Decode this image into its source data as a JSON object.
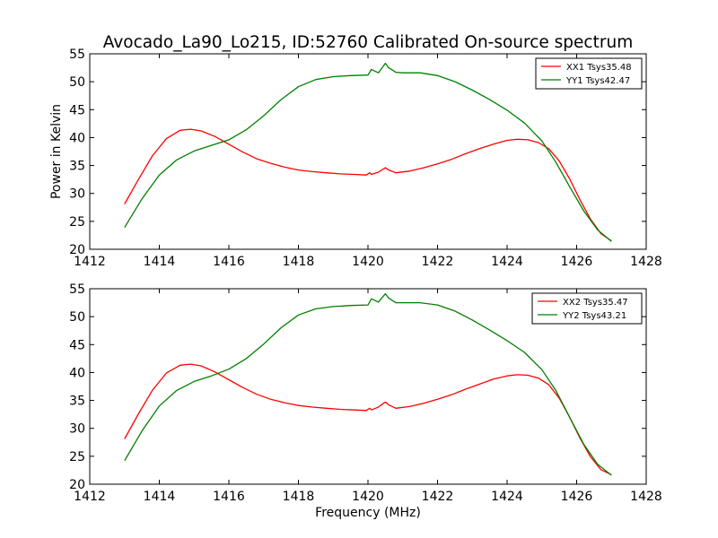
{
  "figure": {
    "title": "Avocado_La90_Lo215, ID:52760 Calibrated On-source spectrum"
  },
  "chart_data": [
    {
      "type": "line",
      "title": "Avocado_La90_Lo215, ID:52760 Calibrated On-source spectrum",
      "xlabel": "",
      "ylabel": "Power in Kelvin",
      "xlim": [
        1412,
        1428
      ],
      "ylim": [
        20,
        55
      ],
      "xticks": [
        1412,
        1414,
        1416,
        1418,
        1420,
        1422,
        1424,
        1426,
        1428
      ],
      "yticks": [
        20,
        25,
        30,
        35,
        40,
        45,
        50,
        55
      ],
      "legend_position": "top-right",
      "grid": false,
      "series": [
        {
          "name": "XX1 Tsys35.48",
          "color": "#ff0000",
          "x": [
            1413.0,
            1413.4,
            1413.8,
            1414.2,
            1414.6,
            1414.9,
            1415.2,
            1415.6,
            1416.0,
            1416.4,
            1416.8,
            1417.2,
            1417.6,
            1418.0,
            1418.4,
            1418.8,
            1419.2,
            1419.6,
            1419.95,
            1420.05,
            1420.1,
            1420.3,
            1420.45,
            1420.5,
            1420.6,
            1420.8,
            1421.2,
            1421.6,
            1422.0,
            1422.4,
            1422.8,
            1423.2,
            1423.6,
            1424.0,
            1424.3,
            1424.6,
            1424.9,
            1425.2,
            1425.5,
            1425.8,
            1426.1,
            1426.4,
            1426.7,
            1427.0
          ],
          "values": [
            28.1,
            32.5,
            36.7,
            39.8,
            41.3,
            41.5,
            41.2,
            40.2,
            38.8,
            37.4,
            36.2,
            35.4,
            34.7,
            34.2,
            33.9,
            33.7,
            33.5,
            33.4,
            33.3,
            33.7,
            33.4,
            33.8,
            34.4,
            34.6,
            34.2,
            33.7,
            34.0,
            34.6,
            35.3,
            36.1,
            37.1,
            38.0,
            38.8,
            39.5,
            39.7,
            39.6,
            39.1,
            38.0,
            35.8,
            32.6,
            28.8,
            25.4,
            22.8,
            21.5
          ]
        },
        {
          "name": "YY1 Tsys42.47",
          "color": "#008000",
          "x": [
            1413.0,
            1413.5,
            1414.0,
            1414.5,
            1415.0,
            1415.5,
            1416.0,
            1416.5,
            1417.0,
            1417.5,
            1418.0,
            1418.5,
            1419.0,
            1419.5,
            1420.0,
            1420.1,
            1420.3,
            1420.5,
            1420.6,
            1420.8,
            1421.0,
            1421.5,
            1422.0,
            1422.5,
            1423.0,
            1423.5,
            1424.0,
            1424.5,
            1425.0,
            1425.4,
            1425.8,
            1426.2,
            1426.6,
            1427.0
          ],
          "values": [
            23.9,
            29.0,
            33.3,
            36.0,
            37.6,
            38.6,
            39.6,
            41.4,
            43.9,
            46.8,
            49.1,
            50.4,
            50.9,
            51.1,
            51.2,
            52.2,
            51.6,
            53.3,
            52.5,
            51.7,
            51.6,
            51.6,
            51.1,
            50.0,
            48.5,
            46.8,
            44.9,
            42.6,
            39.4,
            35.6,
            31.2,
            26.9,
            23.5,
            21.4
          ]
        }
      ]
    },
    {
      "type": "line",
      "title": "",
      "xlabel": "Frequency (MHz)",
      "ylabel": "",
      "xlim": [
        1412,
        1428
      ],
      "ylim": [
        20,
        55
      ],
      "xticks": [
        1412,
        1414,
        1416,
        1418,
        1420,
        1422,
        1424,
        1426,
        1428
      ],
      "yticks": [
        20,
        25,
        30,
        35,
        40,
        45,
        50,
        55
      ],
      "legend_position": "top-right",
      "grid": false,
      "series": [
        {
          "name": "XX2 Tsys35.47",
          "color": "#ff0000",
          "x": [
            1413.0,
            1413.4,
            1413.8,
            1414.2,
            1414.6,
            1414.9,
            1415.2,
            1415.6,
            1416.0,
            1416.4,
            1416.8,
            1417.2,
            1417.6,
            1418.0,
            1418.4,
            1418.8,
            1419.2,
            1419.6,
            1419.95,
            1420.05,
            1420.1,
            1420.3,
            1420.45,
            1420.5,
            1420.6,
            1420.8,
            1421.2,
            1421.6,
            1422.0,
            1422.4,
            1422.8,
            1423.2,
            1423.6,
            1424.0,
            1424.3,
            1424.6,
            1424.9,
            1425.2,
            1425.5,
            1425.8,
            1426.1,
            1426.4,
            1426.7,
            1427.0
          ],
          "values": [
            28.1,
            32.6,
            36.8,
            39.9,
            41.3,
            41.5,
            41.2,
            40.1,
            38.7,
            37.3,
            36.1,
            35.2,
            34.6,
            34.1,
            33.8,
            33.6,
            33.4,
            33.3,
            33.2,
            33.6,
            33.3,
            33.8,
            34.5,
            34.7,
            34.2,
            33.6,
            33.9,
            34.5,
            35.2,
            36.0,
            37.0,
            37.9,
            38.8,
            39.4,
            39.6,
            39.5,
            39.0,
            37.8,
            35.4,
            32.0,
            28.2,
            24.9,
            22.6,
            21.7
          ]
        },
        {
          "name": "YY2 Tsys43.21",
          "color": "#008000",
          "x": [
            1413.0,
            1413.5,
            1414.0,
            1414.5,
            1415.0,
            1415.5,
            1416.0,
            1416.5,
            1417.0,
            1417.5,
            1418.0,
            1418.5,
            1419.0,
            1419.5,
            1420.0,
            1420.1,
            1420.3,
            1420.5,
            1420.6,
            1420.8,
            1421.0,
            1421.5,
            1422.0,
            1422.5,
            1423.0,
            1423.5,
            1424.0,
            1424.5,
            1425.0,
            1425.4,
            1425.8,
            1426.2,
            1426.6,
            1427.0
          ],
          "values": [
            24.2,
            29.5,
            34.0,
            36.8,
            38.4,
            39.4,
            40.6,
            42.5,
            45.1,
            48.0,
            50.3,
            51.4,
            51.8,
            52.0,
            52.1,
            53.2,
            52.6,
            54.1,
            53.3,
            52.5,
            52.5,
            52.5,
            52.1,
            51.0,
            49.4,
            47.6,
            45.7,
            43.6,
            40.5,
            36.8,
            32.0,
            27.2,
            23.6,
            21.6
          ]
        }
      ]
    }
  ]
}
